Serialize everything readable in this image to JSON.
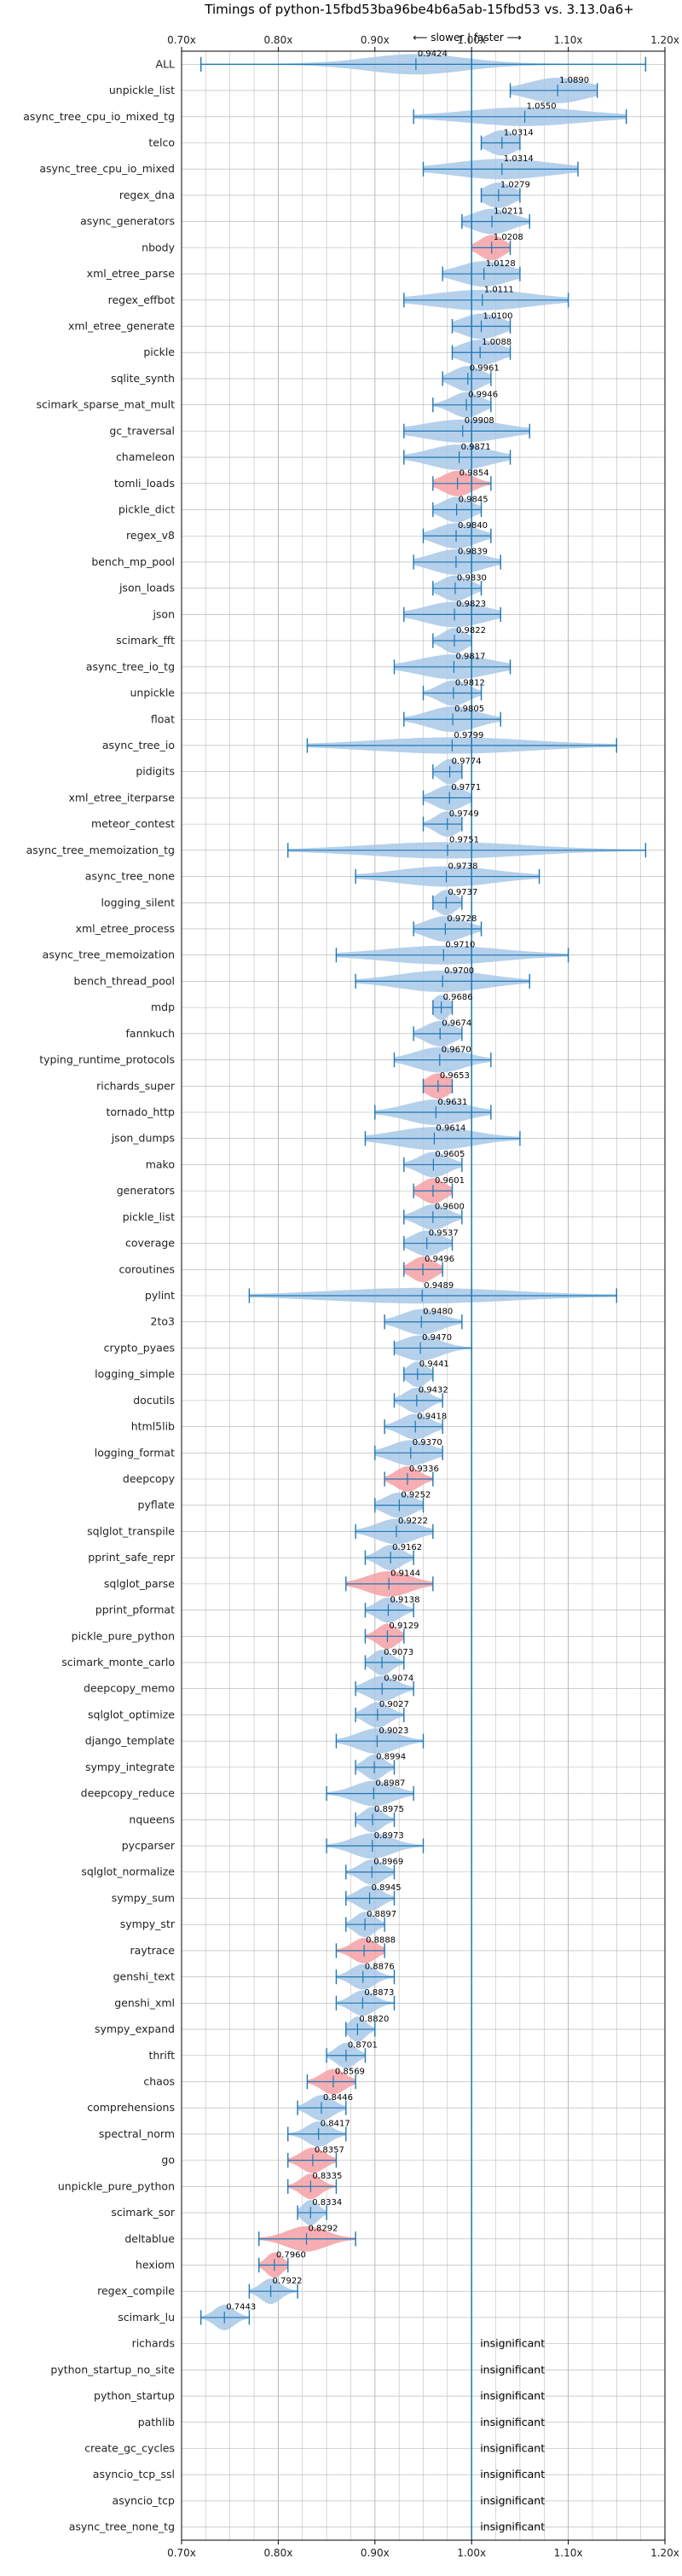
{
  "chart_data": {
    "type": "violin",
    "title": "Timings of python-15fbd53ba96be4b6a5ab-15fbd53 vs. 3.13.0a6+",
    "direction_note": "⟵ slower | faster ⟶",
    "xlim": [
      0.7,
      1.2
    ],
    "xticks": [
      "0.70x",
      "0.80x",
      "0.90x",
      "1.00x",
      "1.10x",
      "1.20x"
    ],
    "xtick_values": [
      0.7,
      0.8,
      0.9,
      1.0,
      1.1,
      1.2
    ],
    "reference_line": 1.0,
    "grid": true,
    "colors": {
      "normal": "#a8c8e8",
      "highlight": "#f4a0a4",
      "whisker": "#1f77b4",
      "refline": "#1f77b4",
      "grid": "#b0b0b0"
    },
    "insignificant_label": "insignificant",
    "benchmarks": [
      {
        "name": "ALL",
        "value": 0.9424,
        "label": "0.9424",
        "min": 0.72,
        "max": 1.18,
        "spread": 0.05,
        "highlight": false
      },
      {
        "name": "unpickle_list",
        "value": 1.089,
        "label": "1.0890",
        "min": 1.04,
        "max": 1.13,
        "spread": 0.03,
        "highlight": false
      },
      {
        "name": "async_tree_cpu_io_mixed_tg",
        "value": 1.055,
        "label": "1.0550",
        "min": 0.94,
        "max": 1.16,
        "spread": 0.06,
        "highlight": false
      },
      {
        "name": "telco",
        "value": 1.0314,
        "label": "1.0314",
        "min": 1.01,
        "max": 1.05,
        "spread": 0.015,
        "highlight": false
      },
      {
        "name": "async_tree_cpu_io_mixed",
        "value": 1.0314,
        "label": "1.0314",
        "min": 0.95,
        "max": 1.11,
        "spread": 0.05,
        "highlight": false
      },
      {
        "name": "regex_dna",
        "value": 1.0279,
        "label": "1.0279",
        "min": 1.01,
        "max": 1.05,
        "spread": 0.015,
        "highlight": false
      },
      {
        "name": "async_generators",
        "value": 1.0211,
        "label": "1.0211",
        "min": 0.99,
        "max": 1.06,
        "spread": 0.02,
        "highlight": false
      },
      {
        "name": "nbody",
        "value": 1.0208,
        "label": "1.0208",
        "min": 1.0,
        "max": 1.04,
        "spread": 0.012,
        "highlight": true
      },
      {
        "name": "xml_etree_parse",
        "value": 1.0128,
        "label": "1.0128",
        "min": 0.97,
        "max": 1.05,
        "spread": 0.025,
        "highlight": false
      },
      {
        "name": "regex_effbot",
        "value": 1.0111,
        "label": "1.0111",
        "min": 0.93,
        "max": 1.1,
        "spread": 0.05,
        "highlight": false
      },
      {
        "name": "xml_etree_generate",
        "value": 1.01,
        "label": "1.0100",
        "min": 0.98,
        "max": 1.04,
        "spread": 0.02,
        "highlight": false
      },
      {
        "name": "pickle",
        "value": 1.0088,
        "label": "1.0088",
        "min": 0.98,
        "max": 1.04,
        "spread": 0.02,
        "highlight": false
      },
      {
        "name": "sqlite_synth",
        "value": 0.9961,
        "label": "0.9961",
        "min": 0.97,
        "max": 1.02,
        "spread": 0.015,
        "highlight": false
      },
      {
        "name": "scimark_sparse_mat_mult",
        "value": 0.9946,
        "label": "0.9946",
        "min": 0.96,
        "max": 1.02,
        "spread": 0.015,
        "highlight": false
      },
      {
        "name": "gc_traversal",
        "value": 0.9908,
        "label": "0.9908",
        "min": 0.93,
        "max": 1.06,
        "spread": 0.04,
        "highlight": false
      },
      {
        "name": "chameleon",
        "value": 0.9871,
        "label": "0.9871",
        "min": 0.93,
        "max": 1.04,
        "spread": 0.03,
        "highlight": false
      },
      {
        "name": "tomli_loads",
        "value": 0.9854,
        "label": "0.9854",
        "min": 0.96,
        "max": 1.02,
        "spread": 0.015,
        "highlight": true
      },
      {
        "name": "pickle_dict",
        "value": 0.9845,
        "label": "0.9845",
        "min": 0.96,
        "max": 1.01,
        "spread": 0.015,
        "highlight": false
      },
      {
        "name": "regex_v8",
        "value": 0.984,
        "label": "0.9840",
        "min": 0.95,
        "max": 1.02,
        "spread": 0.02,
        "highlight": false
      },
      {
        "name": "bench_mp_pool",
        "value": 0.9839,
        "label": "0.9839",
        "min": 0.94,
        "max": 1.03,
        "spread": 0.025,
        "highlight": false
      },
      {
        "name": "json_loads",
        "value": 0.983,
        "label": "0.9830",
        "min": 0.96,
        "max": 1.01,
        "spread": 0.015,
        "highlight": false
      },
      {
        "name": "json",
        "value": 0.9823,
        "label": "0.9823",
        "min": 0.93,
        "max": 1.03,
        "spread": 0.03,
        "highlight": false
      },
      {
        "name": "scimark_fft",
        "value": 0.9822,
        "label": "0.9822",
        "min": 0.96,
        "max": 1.0,
        "spread": 0.012,
        "highlight": false
      },
      {
        "name": "async_tree_io_tg",
        "value": 0.9817,
        "label": "0.9817",
        "min": 0.92,
        "max": 1.04,
        "spread": 0.035,
        "highlight": false
      },
      {
        "name": "unpickle",
        "value": 0.9812,
        "label": "0.9812",
        "min": 0.95,
        "max": 1.01,
        "spread": 0.015,
        "highlight": false
      },
      {
        "name": "float",
        "value": 0.9805,
        "label": "0.9805",
        "min": 0.93,
        "max": 1.03,
        "spread": 0.025,
        "highlight": false
      },
      {
        "name": "async_tree_io",
        "value": 0.9799,
        "label": "0.9799",
        "min": 0.83,
        "max": 1.15,
        "spread": 0.08,
        "highlight": false
      },
      {
        "name": "pidigits",
        "value": 0.9774,
        "label": "0.9774",
        "min": 0.96,
        "max": 0.99,
        "spread": 0.01,
        "highlight": false
      },
      {
        "name": "xml_etree_iterparse",
        "value": 0.9771,
        "label": "0.9771",
        "min": 0.95,
        "max": 1.0,
        "spread": 0.015,
        "highlight": false
      },
      {
        "name": "meteor_contest",
        "value": 0.9749,
        "label": "0.9749",
        "min": 0.95,
        "max": 0.99,
        "spread": 0.012,
        "highlight": false
      },
      {
        "name": "async_tree_memoization_tg",
        "value": 0.9751,
        "label": "0.9751",
        "min": 0.81,
        "max": 1.18,
        "spread": 0.08,
        "highlight": false
      },
      {
        "name": "async_tree_none",
        "value": 0.9738,
        "label": "0.9738",
        "min": 0.88,
        "max": 1.07,
        "spread": 0.05,
        "highlight": false
      },
      {
        "name": "logging_silent",
        "value": 0.9737,
        "label": "0.9737",
        "min": 0.96,
        "max": 0.99,
        "spread": 0.01,
        "highlight": false
      },
      {
        "name": "xml_etree_process",
        "value": 0.9728,
        "label": "0.9728",
        "min": 0.94,
        "max": 1.01,
        "spread": 0.02,
        "highlight": false
      },
      {
        "name": "async_tree_memoization",
        "value": 0.971,
        "label": "0.9710",
        "min": 0.86,
        "max": 1.1,
        "spread": 0.06,
        "highlight": false
      },
      {
        "name": "bench_thread_pool",
        "value": 0.97,
        "label": "0.9700",
        "min": 0.88,
        "max": 1.06,
        "spread": 0.045,
        "highlight": false
      },
      {
        "name": "mdp",
        "value": 0.9686,
        "label": "0.9686",
        "min": 0.96,
        "max": 0.98,
        "spread": 0.008,
        "highlight": false
      },
      {
        "name": "fannkuch",
        "value": 0.9674,
        "label": "0.9674",
        "min": 0.94,
        "max": 0.99,
        "spread": 0.015,
        "highlight": false
      },
      {
        "name": "typing_runtime_protocols",
        "value": 0.967,
        "label": "0.9670",
        "min": 0.92,
        "max": 1.02,
        "spread": 0.025,
        "highlight": false
      },
      {
        "name": "richards_super",
        "value": 0.9653,
        "label": "0.9653",
        "min": 0.95,
        "max": 0.98,
        "spread": 0.012,
        "highlight": true
      },
      {
        "name": "tornado_http",
        "value": 0.9631,
        "label": "0.9631",
        "min": 0.9,
        "max": 1.02,
        "spread": 0.03,
        "highlight": false
      },
      {
        "name": "json_dumps",
        "value": 0.9614,
        "label": "0.9614",
        "min": 0.89,
        "max": 1.05,
        "spread": 0.04,
        "highlight": false
      },
      {
        "name": "mako",
        "value": 0.9605,
        "label": "0.9605",
        "min": 0.93,
        "max": 0.99,
        "spread": 0.015,
        "highlight": false
      },
      {
        "name": "generators",
        "value": 0.9601,
        "label": "0.9601",
        "min": 0.94,
        "max": 0.98,
        "spread": 0.012,
        "highlight": true
      },
      {
        "name": "pickle_list",
        "value": 0.96,
        "label": "0.9600",
        "min": 0.93,
        "max": 0.99,
        "spread": 0.015,
        "highlight": false
      },
      {
        "name": "coverage",
        "value": 0.9537,
        "label": "0.9537",
        "min": 0.93,
        "max": 0.98,
        "spread": 0.015,
        "highlight": false
      },
      {
        "name": "coroutines",
        "value": 0.9496,
        "label": "0.9496",
        "min": 0.93,
        "max": 0.97,
        "spread": 0.012,
        "highlight": true
      },
      {
        "name": "pylint",
        "value": 0.9489,
        "label": "0.9489",
        "min": 0.77,
        "max": 1.15,
        "spread": 0.09,
        "highlight": false
      },
      {
        "name": "2to3",
        "value": 0.948,
        "label": "0.9480",
        "min": 0.91,
        "max": 0.99,
        "spread": 0.02,
        "highlight": false
      },
      {
        "name": "crypto_pyaes",
        "value": 0.947,
        "label": "0.9470",
        "min": 0.92,
        "max": 1.0,
        "spread": 0.02,
        "highlight": false
      },
      {
        "name": "logging_simple",
        "value": 0.9441,
        "label": "0.9441",
        "min": 0.93,
        "max": 0.96,
        "spread": 0.01,
        "highlight": false
      },
      {
        "name": "docutils",
        "value": 0.9432,
        "label": "0.9432",
        "min": 0.92,
        "max": 0.97,
        "spread": 0.012,
        "highlight": false
      },
      {
        "name": "html5lib",
        "value": 0.9418,
        "label": "0.9418",
        "min": 0.91,
        "max": 0.97,
        "spread": 0.015,
        "highlight": false
      },
      {
        "name": "logging_format",
        "value": 0.937,
        "label": "0.9370",
        "min": 0.9,
        "max": 0.97,
        "spread": 0.02,
        "highlight": false
      },
      {
        "name": "deepcopy",
        "value": 0.9336,
        "label": "0.9336",
        "min": 0.91,
        "max": 0.96,
        "spread": 0.012,
        "highlight": true
      },
      {
        "name": "pyflate",
        "value": 0.9252,
        "label": "0.9252",
        "min": 0.9,
        "max": 0.95,
        "spread": 0.015,
        "highlight": false
      },
      {
        "name": "sqlglot_transpile",
        "value": 0.9222,
        "label": "0.9222",
        "min": 0.88,
        "max": 0.96,
        "spread": 0.02,
        "highlight": false
      },
      {
        "name": "pprint_safe_repr",
        "value": 0.9162,
        "label": "0.9162",
        "min": 0.89,
        "max": 0.94,
        "spread": 0.012,
        "highlight": false
      },
      {
        "name": "sqlglot_parse",
        "value": 0.9144,
        "label": "0.9144",
        "min": 0.87,
        "max": 0.96,
        "spread": 0.022,
        "highlight": true
      },
      {
        "name": "pprint_pformat",
        "value": 0.9138,
        "label": "0.9138",
        "min": 0.89,
        "max": 0.94,
        "spread": 0.012,
        "highlight": false
      },
      {
        "name": "pickle_pure_python",
        "value": 0.9129,
        "label": "0.9129",
        "min": 0.89,
        "max": 0.93,
        "spread": 0.01,
        "highlight": true
      },
      {
        "name": "scimark_monte_carlo",
        "value": 0.9073,
        "label": "0.9073",
        "min": 0.89,
        "max": 0.93,
        "spread": 0.01,
        "highlight": false
      },
      {
        "name": "deepcopy_memo",
        "value": 0.9074,
        "label": "0.9074",
        "min": 0.88,
        "max": 0.94,
        "spread": 0.015,
        "highlight": false
      },
      {
        "name": "sqlglot_optimize",
        "value": 0.9027,
        "label": "0.9027",
        "min": 0.88,
        "max": 0.93,
        "spread": 0.012,
        "highlight": false
      },
      {
        "name": "django_template",
        "value": 0.9023,
        "label": "0.9023",
        "min": 0.86,
        "max": 0.95,
        "spread": 0.02,
        "highlight": false
      },
      {
        "name": "sympy_integrate",
        "value": 0.8994,
        "label": "0.8994",
        "min": 0.88,
        "max": 0.92,
        "spread": 0.01,
        "highlight": false
      },
      {
        "name": "deepcopy_reduce",
        "value": 0.8987,
        "label": "0.8987",
        "min": 0.85,
        "max": 0.94,
        "spread": 0.02,
        "highlight": false
      },
      {
        "name": "nqueens",
        "value": 0.8975,
        "label": "0.8975",
        "min": 0.88,
        "max": 0.92,
        "spread": 0.01,
        "highlight": false
      },
      {
        "name": "pycparser",
        "value": 0.8973,
        "label": "0.8973",
        "min": 0.85,
        "max": 0.95,
        "spread": 0.02,
        "highlight": false
      },
      {
        "name": "sqlglot_normalize",
        "value": 0.8969,
        "label": "0.8969",
        "min": 0.87,
        "max": 0.92,
        "spread": 0.012,
        "highlight": false
      },
      {
        "name": "sympy_sum",
        "value": 0.8945,
        "label": "0.8945",
        "min": 0.87,
        "max": 0.92,
        "spread": 0.012,
        "highlight": false
      },
      {
        "name": "sympy_str",
        "value": 0.8897,
        "label": "0.8897",
        "min": 0.87,
        "max": 0.91,
        "spread": 0.01,
        "highlight": false
      },
      {
        "name": "raytrace",
        "value": 0.8888,
        "label": "0.8888",
        "min": 0.86,
        "max": 0.91,
        "spread": 0.012,
        "highlight": true
      },
      {
        "name": "genshi_text",
        "value": 0.8876,
        "label": "0.8876",
        "min": 0.86,
        "max": 0.92,
        "spread": 0.012,
        "highlight": false
      },
      {
        "name": "genshi_xml",
        "value": 0.8873,
        "label": "0.8873",
        "min": 0.86,
        "max": 0.92,
        "spread": 0.012,
        "highlight": false
      },
      {
        "name": "sympy_expand",
        "value": 0.882,
        "label": "0.8820",
        "min": 0.87,
        "max": 0.9,
        "spread": 0.008,
        "highlight": false
      },
      {
        "name": "thrift",
        "value": 0.8701,
        "label": "0.8701",
        "min": 0.85,
        "max": 0.89,
        "spread": 0.01,
        "highlight": false
      },
      {
        "name": "chaos",
        "value": 0.8569,
        "label": "0.8569",
        "min": 0.83,
        "max": 0.88,
        "spread": 0.012,
        "highlight": true
      },
      {
        "name": "comprehensions",
        "value": 0.8446,
        "label": "0.8446",
        "min": 0.82,
        "max": 0.87,
        "spread": 0.012,
        "highlight": false
      },
      {
        "name": "spectral_norm",
        "value": 0.8417,
        "label": "0.8417",
        "min": 0.81,
        "max": 0.87,
        "spread": 0.012,
        "highlight": false
      },
      {
        "name": "go",
        "value": 0.8357,
        "label": "0.8357",
        "min": 0.81,
        "max": 0.86,
        "spread": 0.012,
        "highlight": true
      },
      {
        "name": "unpickle_pure_python",
        "value": 0.8335,
        "label": "0.8335",
        "min": 0.81,
        "max": 0.86,
        "spread": 0.01,
        "highlight": true
      },
      {
        "name": "scimark_sor",
        "value": 0.8334,
        "label": "0.8334",
        "min": 0.82,
        "max": 0.85,
        "spread": 0.008,
        "highlight": false
      },
      {
        "name": "deltablue",
        "value": 0.8292,
        "label": "0.8292",
        "min": 0.78,
        "max": 0.88,
        "spread": 0.02,
        "highlight": true
      },
      {
        "name": "hexiom",
        "value": 0.796,
        "label": "0.7960",
        "min": 0.78,
        "max": 0.81,
        "spread": 0.008,
        "highlight": true
      },
      {
        "name": "regex_compile",
        "value": 0.7922,
        "label": "0.7922",
        "min": 0.77,
        "max": 0.82,
        "spread": 0.01,
        "highlight": false
      },
      {
        "name": "scimark_lu",
        "value": 0.7443,
        "label": "0.7443",
        "min": 0.72,
        "max": 0.77,
        "spread": 0.01,
        "highlight": false
      },
      {
        "name": "richards",
        "insignificant": true
      },
      {
        "name": "python_startup_no_site",
        "insignificant": true
      },
      {
        "name": "python_startup",
        "insignificant": true
      },
      {
        "name": "pathlib",
        "insignificant": true
      },
      {
        "name": "create_gc_cycles",
        "insignificant": true
      },
      {
        "name": "asyncio_tcp_ssl",
        "insignificant": true
      },
      {
        "name": "asyncio_tcp",
        "insignificant": true
      },
      {
        "name": "async_tree_none_tg",
        "insignificant": true
      }
    ]
  }
}
